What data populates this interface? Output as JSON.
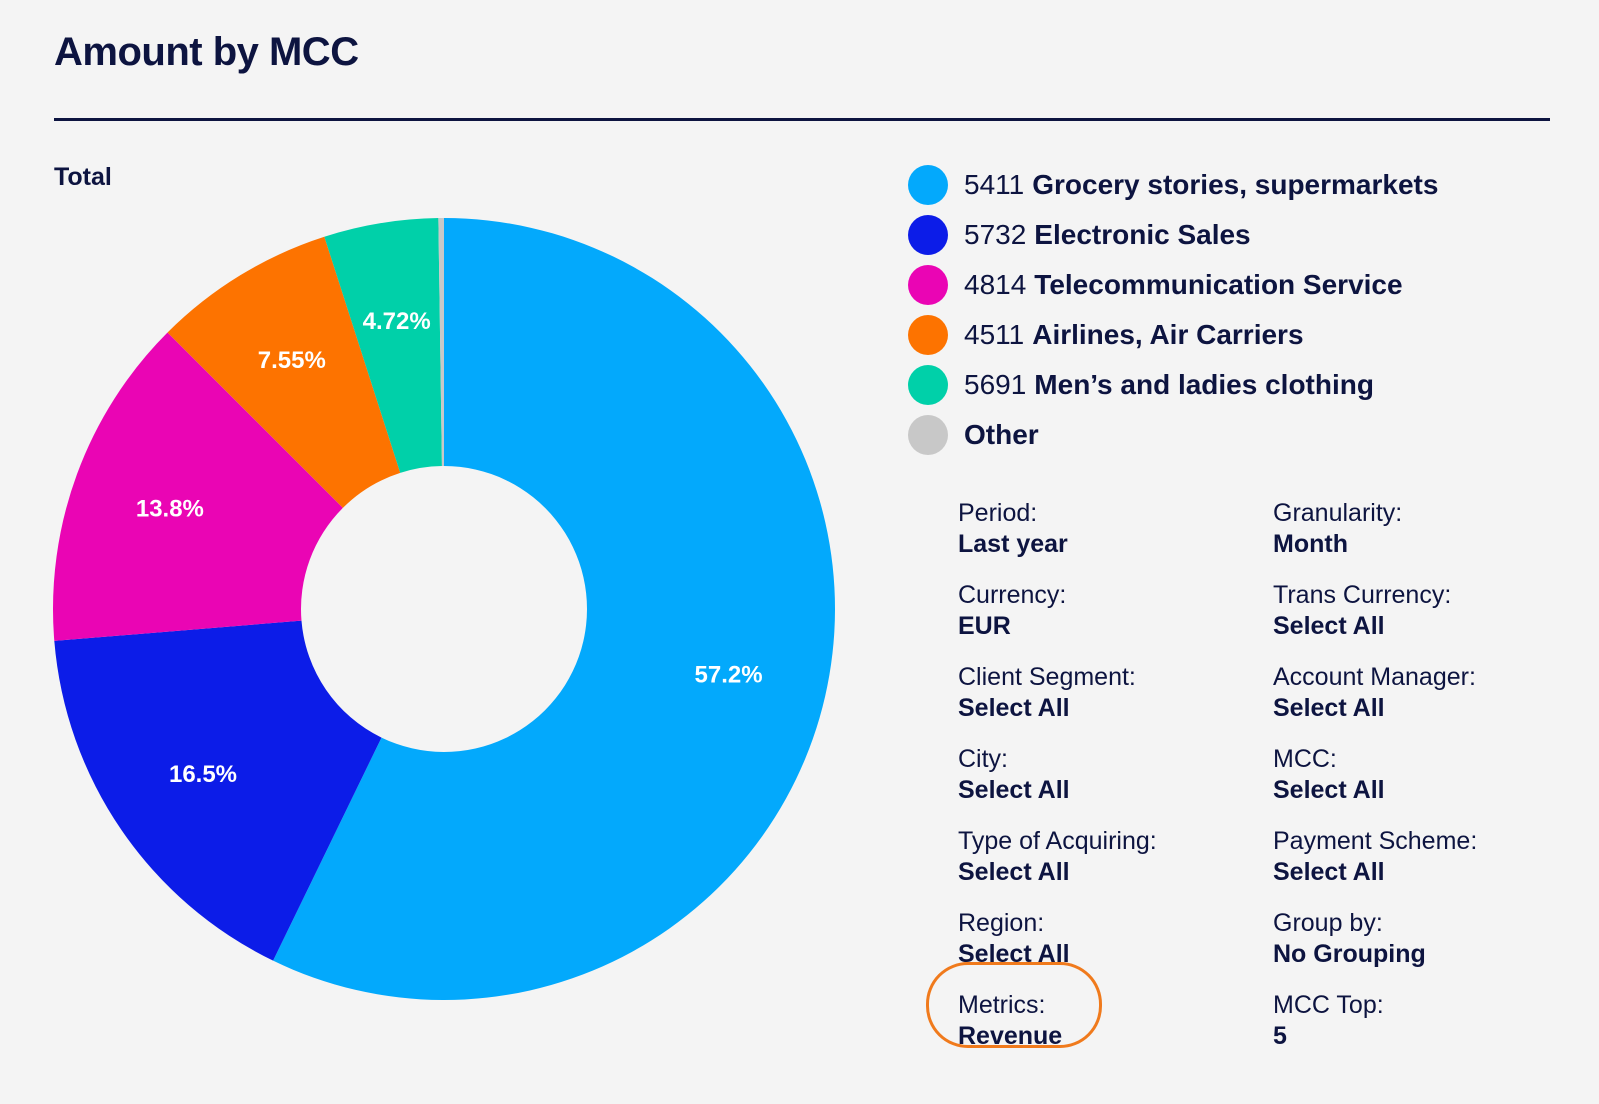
{
  "title": "Amount by MCC",
  "subtitle": "Total",
  "chart_data": {
    "type": "pie",
    "donut": true,
    "title": "Amount by MCC",
    "slices": [
      {
        "code": "5411",
        "name": "Grocery stories, supermarkets",
        "value": 57.2,
        "label": "57.2%",
        "color": "#03a9fc"
      },
      {
        "code": "5732",
        "name": "Electronic Sales",
        "value": 16.5,
        "label": "16.5%",
        "color": "#0c1ce8"
      },
      {
        "code": "4814",
        "name": "Telecommunication Service",
        "value": 13.8,
        "label": "13.8%",
        "color": "#ea05b4"
      },
      {
        "code": "4511",
        "name": "Airlines, Air Carriers",
        "value": 7.55,
        "label": "7.55%",
        "color": "#fd7300"
      },
      {
        "code": "5691",
        "name": "Men’s and ladies clothing",
        "value": 4.72,
        "label": "4.72%",
        "color": "#00d0a9"
      },
      {
        "code": "",
        "name": "Other",
        "value": 0.23,
        "label": "",
        "color": "#c8c8c8"
      }
    ],
    "legend_position": "right"
  },
  "filters": [
    {
      "label": "Period:",
      "value": "Last year"
    },
    {
      "label": "Granularity:",
      "value": "Month"
    },
    {
      "label": "Currency:",
      "value": "EUR"
    },
    {
      "label": "Trans Currency:",
      "value": "Select All"
    },
    {
      "label": "Client Segment:",
      "value": "Select All"
    },
    {
      "label": "Account Manager:",
      "value": "Select All"
    },
    {
      "label": "City:",
      "value": "Select All"
    },
    {
      "label": "MCC:",
      "value": "Select All"
    },
    {
      "label": "Type of Acquiring:",
      "value": "Select All"
    },
    {
      "label": "Payment Scheme:",
      "value": "Select All"
    },
    {
      "label": "Region:",
      "value": "Select All"
    },
    {
      "label": "Group by:",
      "value": "No Grouping"
    },
    {
      "label": "Metrics:",
      "value": "Revenue"
    },
    {
      "label": "MCC Top:",
      "value": "5"
    }
  ],
  "highlight_color": "#f07a1c"
}
